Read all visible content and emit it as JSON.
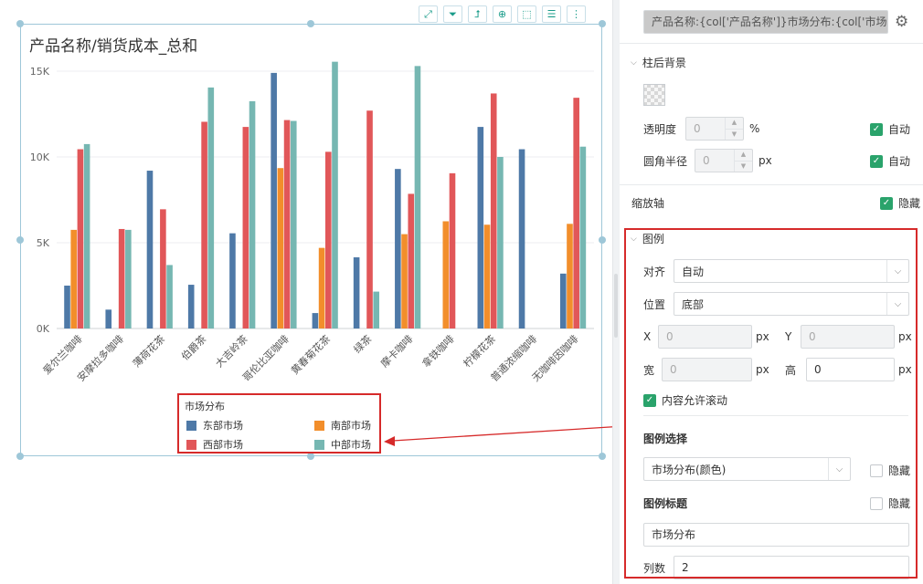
{
  "chart": {
    "title": "产品名称/销货成本_总和",
    "toolbar_icons": [
      "expand-icon",
      "filter-icon",
      "drill-icon",
      "zoom-icon",
      "select-icon",
      "list-icon",
      "more-icon"
    ],
    "toolbar_glyphs": [
      "⤢",
      "⏷",
      "⮥",
      "⊕",
      "⬚",
      "☰",
      "⋮"
    ]
  },
  "chart_data": {
    "type": "bar",
    "title": "产品名称/销货成本_总和",
    "categories": [
      "爱尔兰咖啡",
      "安摩拉多咖啡",
      "薄荷花茶",
      "伯爵茶",
      "大吉岭茶",
      "哥伦比亚咖啡",
      "黄春菊花茶",
      "绿茶",
      "摩卡咖啡",
      "拿铁咖啡",
      "柠檬花茶",
      "普通浓缩咖啡",
      "无咖啡因咖啡"
    ],
    "yticks": [
      "0K",
      "5K",
      "10K",
      "15K"
    ],
    "ylim": [
      0,
      15000
    ],
    "grid": true,
    "legend_position": "bottom",
    "series": [
      {
        "name": "东部市场",
        "color": "#4e79a7",
        "values": [
          2500,
          1100,
          9200,
          2550,
          5550,
          14900,
          900,
          4150,
          9300,
          null,
          11750,
          10450,
          3200
        ]
      },
      {
        "name": "南部市场",
        "color": "#f28e2b",
        "values": [
          5750,
          null,
          null,
          null,
          null,
          9350,
          4700,
          null,
          5500,
          6250,
          6050,
          null,
          6100
        ]
      },
      {
        "name": "西部市场",
        "color": "#e15759",
        "values": [
          10450,
          5800,
          6950,
          12050,
          11750,
          12150,
          10300,
          12700,
          7850,
          9050,
          13700,
          null,
          13450
        ]
      },
      {
        "name": "中部市场",
        "color": "#76b7b2",
        "values": [
          10750,
          5750,
          3700,
          14050,
          13250,
          12100,
          15550,
          2150,
          15300,
          null,
          10000,
          null,
          10600
        ]
      }
    ]
  },
  "legend": {
    "title": "市场分布",
    "items": [
      "东部市场",
      "南部市场",
      "西部市场",
      "中部市场"
    ],
    "colors": [
      "#4e79a7",
      "#f28e2b",
      "#e15759",
      "#76b7b2"
    ]
  },
  "panel": {
    "field_expr": "产品名称:{col['产品名称']}市场分布:{col['市场分...",
    "bar_bg": {
      "title": "柱后背景",
      "opacity_label": "透明度",
      "opacity_value": "0",
      "opacity_unit": "%",
      "radius_label": "圆角半径",
      "radius_value": "0",
      "radius_unit": "px",
      "auto_label": "自动"
    },
    "zoom_axis": {
      "label": "缩放轴",
      "hide_label": "隐藏"
    },
    "legend": {
      "title": "图例",
      "align_label": "对齐",
      "align_value": "自动",
      "position_label": "位置",
      "position_value": "底部",
      "x_label": "X",
      "x_value": "0",
      "y_label": "Y",
      "y_value": "0",
      "w_label": "宽",
      "w_value": "0",
      "h_label": "高",
      "h_value": "0",
      "px": "px",
      "scroll_label": "内容允许滚动",
      "select_title": "图例选择",
      "select_value": "市场分布(颜色)",
      "hide_label": "隐藏",
      "legend_title_label": "图例标题",
      "legend_title_value": "市场分布",
      "columns_label": "列数",
      "columns_value": "2"
    }
  }
}
